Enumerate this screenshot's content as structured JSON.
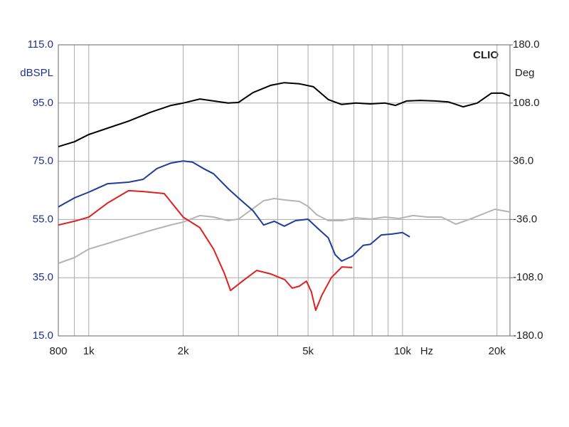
{
  "chart_data": {
    "type": "line",
    "brand": "CLIO",
    "y_label": "dBSPL",
    "y2_label": "Deg",
    "x_label": "Hz",
    "xscale": "log",
    "grid": true,
    "xlim": [
      800,
      22000
    ],
    "xticks": [
      800,
      {
        "value": 1000,
        "label": "1k"
      },
      {
        "value": 2000,
        "label": "2k"
      },
      {
        "value": 5000,
        "label": "5k"
      },
      {
        "value": 10000,
        "label": "10k"
      },
      {
        "value": 20000,
        "label": "20k"
      }
    ],
    "xminorticks": [
      900,
      3000,
      4000,
      6000,
      7000,
      8000,
      9000
    ],
    "ylim": [
      15,
      115
    ],
    "yticks": [
      {
        "value": 15,
        "label": "15.0"
      },
      {
        "value": 35,
        "label": "35.0"
      },
      {
        "value": 55,
        "label": "55.0"
      },
      {
        "value": 75,
        "label": "75.0"
      },
      {
        "value": 95,
        "label": "95.0"
      },
      {
        "value": 115,
        "label": "115.0"
      }
    ],
    "y2lim": [
      -180,
      180
    ],
    "y2ticks": [
      {
        "value": -180,
        "label": "-180.0"
      },
      {
        "value": -108,
        "label": "-108.0"
      },
      {
        "value": -36,
        "label": "-36.0"
      },
      {
        "value": 36,
        "label": "36.0"
      },
      {
        "value": 108,
        "label": "108.0"
      },
      {
        "value": 180,
        "label": "180.0"
      }
    ],
    "series": [
      {
        "color": "#b4b4b4",
        "axis": "y2",
        "x": [
          800,
          900,
          1000,
          1150,
          1340,
          1570,
          1830,
          2000,
          2260,
          2500,
          2780,
          3000,
          3340,
          3610,
          3900,
          4220,
          4690,
          5000,
          5340,
          5800,
          6410,
          7120,
          7900,
          8780,
          9740,
          10800,
          12000,
          13300,
          14800,
          16400,
          18200,
          19700,
          22000
        ],
        "values": [
          -90.2,
          -83.2,
          -72.6,
          -65.6,
          -57.7,
          -49.7,
          -42.7,
          -39.2,
          -31.2,
          -33.0,
          -37.4,
          -35.6,
          -22.4,
          -12.8,
          -10.1,
          -11.9,
          -13.6,
          -19.8,
          -30.4,
          -37.4,
          -37.4,
          -33.9,
          -35.6,
          -33.0,
          -34.8,
          -31.2,
          -33.0,
          -33.0,
          -41.8,
          -35.6,
          -28.6,
          -23.3,
          -26.8
        ]
      },
      {
        "color": "#000000",
        "x": [
          800,
          900,
          1000,
          1150,
          1340,
          1570,
          1830,
          2000,
          2260,
          2500,
          2780,
          3000,
          3340,
          3800,
          4200,
          4700,
          5200,
          5800,
          6400,
          7100,
          7900,
          8800,
          9500,
          10300,
          11400,
          12700,
          14000,
          15600,
          17300,
          19200,
          20800,
          22000
        ],
        "values": [
          80.0,
          81.7,
          84.2,
          86.4,
          88.8,
          91.8,
          94.2,
          95.0,
          96.4,
          95.7,
          95.0,
          95.2,
          98.6,
          101.1,
          102.0,
          101.6,
          100.6,
          96.2,
          94.5,
          95.0,
          94.7,
          95.0,
          94.2,
          95.7,
          95.9,
          95.7,
          95.4,
          93.7,
          95.0,
          98.4,
          98.4,
          97.4
        ]
      },
      {
        "color": "#1e3c9a",
        "x": [
          800,
          900,
          1000,
          1150,
          1340,
          1490,
          1650,
          1830,
          2000,
          2140,
          2320,
          2500,
          2780,
          3000,
          3340,
          3610,
          3900,
          4200,
          4560,
          5000,
          5340,
          5800,
          6100,
          6400,
          6920,
          7490,
          7900,
          8560,
          9240,
          10000,
          10550
        ],
        "values": [
          59.3,
          62.4,
          64.4,
          67.3,
          67.8,
          68.8,
          72.5,
          74.4,
          75.1,
          74.7,
          72.5,
          70.7,
          65.6,
          62.4,
          58.0,
          53.1,
          54.4,
          52.7,
          54.6,
          55.1,
          52.2,
          48.7,
          42.9,
          40.7,
          42.4,
          46.1,
          46.5,
          49.7,
          50.0,
          50.5,
          49.0
        ]
      },
      {
        "color": "#e02020",
        "x": [
          800,
          900,
          1000,
          1150,
          1340,
          1490,
          1740,
          2000,
          2260,
          2500,
          2710,
          2830,
          3090,
          3430,
          3800,
          4220,
          4450,
          4690,
          4940,
          5120,
          5290,
          5540,
          5930,
          6410,
          6920
        ],
        "values": [
          53.1,
          54.4,
          55.8,
          60.7,
          64.9,
          64.6,
          63.9,
          55.8,
          52.2,
          44.8,
          36.3,
          30.6,
          33.8,
          37.5,
          36.3,
          34.3,
          31.4,
          32.1,
          33.8,
          30.2,
          23.8,
          29.1,
          35.0,
          38.7,
          38.5
        ]
      }
    ]
  }
}
